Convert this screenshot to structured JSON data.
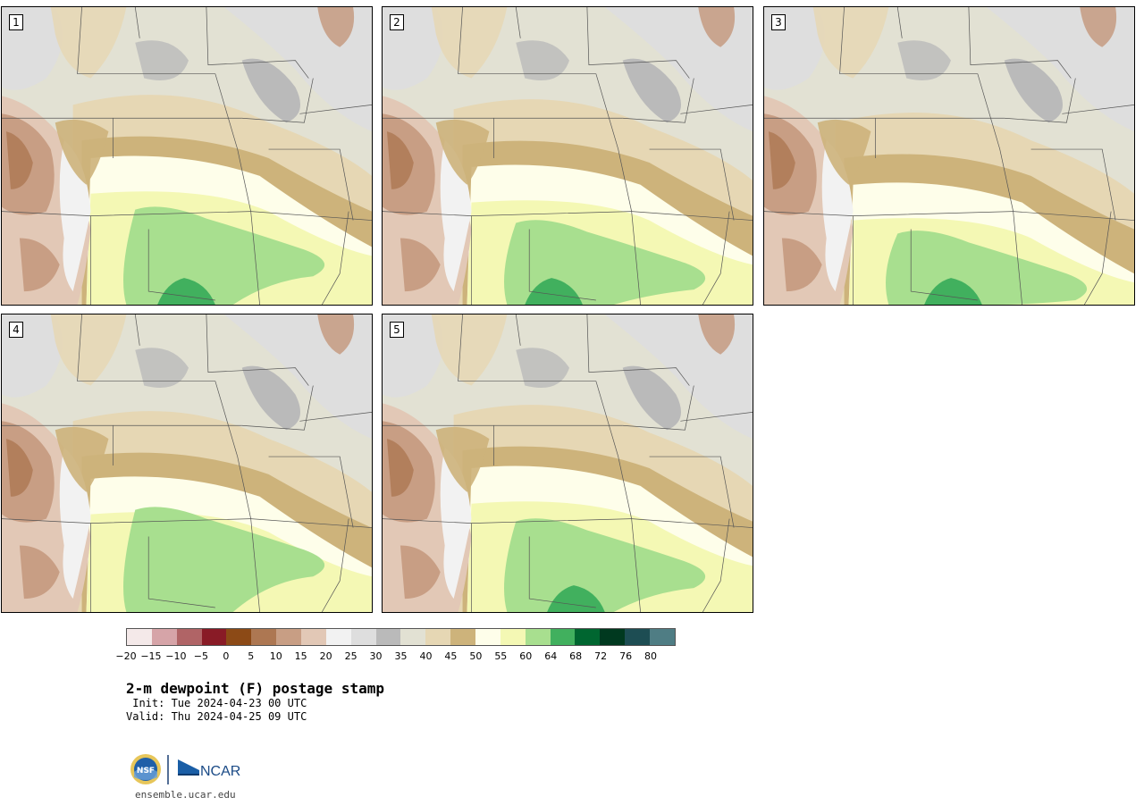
{
  "panels": [
    {
      "label": "1"
    },
    {
      "label": "2"
    },
    {
      "label": "3"
    },
    {
      "label": "4"
    },
    {
      "label": "5"
    }
  ],
  "colorbar": {
    "colors": [
      "#f4e9e9",
      "#d6a4a8",
      "#b06466",
      "#891b26",
      "#8c4a16",
      "#ad7752",
      "#c89e84",
      "#e2c8b6",
      "#f2f2f2",
      "#dedede",
      "#bababa",
      "#e2e1d3",
      "#e6d7b4",
      "#cdb37b",
      "#fefeea",
      "#f4f8b4",
      "#a8df8f",
      "#41b05e",
      "#006630",
      "#00391f",
      "#1d4d53",
      "#4f7d84"
    ],
    "tick_labels": [
      "−20",
      "−15",
      "−10",
      "−5",
      "0",
      "5",
      "10",
      "15",
      "20",
      "25",
      "30",
      "35",
      "40",
      "45",
      "50",
      "55",
      "60",
      "64",
      "68",
      "72",
      "76",
      "80"
    ]
  },
  "header": {
    "title": "2-m dewpoint (F) postage stamp",
    "init": " Init: Tue 2024-04-23 00 UTC",
    "valid": "Valid: Thu 2024-04-25 09 UTC"
  },
  "footer": {
    "nsf_logo_text": "NSF",
    "ncar_logo_text": "NCAR",
    "website": "ensemble.ucar.edu"
  }
}
